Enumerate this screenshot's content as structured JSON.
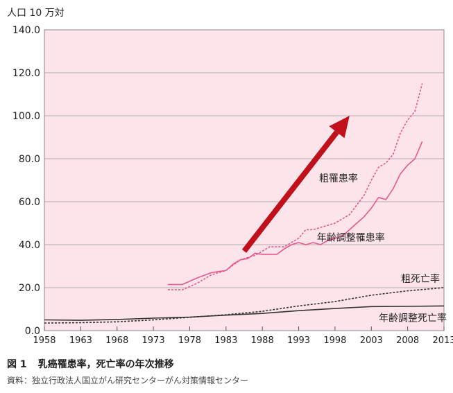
{
  "chart_data": {
    "type": "line",
    "unit_label": "人口 10 万対",
    "x_ticks": [
      1958,
      1963,
      1968,
      1973,
      1978,
      1983,
      1988,
      1993,
      1998,
      2003,
      2008,
      2013
    ],
    "y_ticks": [
      "0.0",
      "20.0",
      "40.0",
      "60.0",
      "80.0",
      "100.0",
      "120.0",
      "140.0"
    ],
    "xlim": [
      1958,
      2013
    ],
    "ylim": [
      0,
      140
    ],
    "grid": "horizontal",
    "background_color": "#fce4ea",
    "series": [
      {
        "name": "粗罹患率",
        "color": "#e8578a",
        "style": "dashed",
        "x": [
          1975,
          1977,
          1979,
          1981,
          1983,
          1985,
          1987,
          1989,
          1991,
          1993,
          1994,
          1995,
          1996,
          1998,
          2000,
          2002,
          2003,
          2004,
          2005,
          2006,
          2007,
          2008,
          2009,
          2010
        ],
        "y": [
          19,
          19,
          22,
          26,
          28,
          33,
          35,
          39,
          39,
          43,
          47,
          47,
          48,
          50,
          54,
          63,
          70,
          76,
          78,
          82,
          92,
          98,
          102,
          115
        ]
      },
      {
        "name": "年齢調整罹患率",
        "color": "#e8578a",
        "style": "solid",
        "x": [
          1975,
          1977,
          1979,
          1981,
          1983,
          1984,
          1985,
          1986,
          1987,
          1988,
          1990,
          1991,
          1992,
          1993,
          1994,
          1995,
          1996,
          1997,
          1998,
          1999,
          2000,
          2001,
          2002,
          2003,
          2004,
          2005,
          2006,
          2007,
          2008,
          2009,
          2010
        ],
        "y": [
          21.5,
          21.5,
          24.5,
          27,
          28,
          31,
          33,
          33.5,
          36,
          35.5,
          35.5,
          38,
          40,
          41,
          40,
          41,
          40,
          42,
          43,
          44,
          47,
          50,
          53,
          57,
          62,
          61,
          66,
          73,
          77,
          80,
          88
        ]
      },
      {
        "name": "粗死亡率",
        "color": "#333333",
        "style": "dashed",
        "x": [
          1958,
          1963,
          1968,
          1973,
          1978,
          1983,
          1988,
          1993,
          1998,
          2003,
          2008,
          2013
        ],
        "y": [
          3.5,
          3.7,
          4.1,
          5.0,
          6.2,
          7.4,
          9.0,
          11.5,
          13.5,
          16.5,
          18.5,
          20.0
        ]
      },
      {
        "name": "年齢調整死亡率",
        "color": "#333333",
        "style": "solid",
        "x": [
          1958,
          1963,
          1968,
          1973,
          1978,
          1983,
          1988,
          1993,
          1998,
          2003,
          2008,
          2013
        ],
        "y": [
          5.0,
          4.8,
          5.2,
          5.8,
          6.3,
          7.2,
          8.0,
          9.3,
          10.3,
          11.2,
          11.3,
          11.5
        ]
      }
    ],
    "annotation": {
      "type": "arrow",
      "color": "#c0101c",
      "from": [
        1985.5,
        37
      ],
      "to": [
        2000,
        100
      ]
    }
  },
  "caption": {
    "figure_number": "図 1",
    "title": "乳癌罹患率，死亡率の年次推移"
  },
  "source": "資料：独立行政法人国立がん研究センターがん対策情報センター"
}
